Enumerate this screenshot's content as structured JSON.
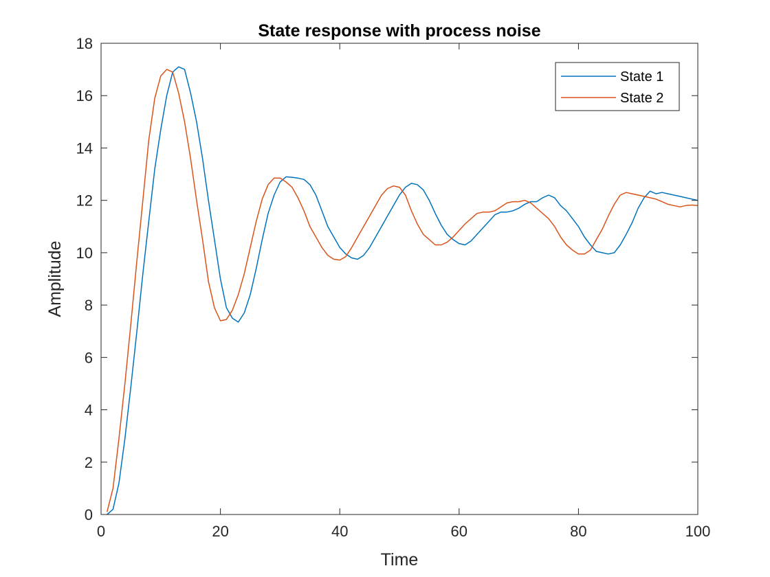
{
  "chart_data": {
    "type": "line",
    "title": "State response with process noise",
    "xlabel": "Time",
    "ylabel": "Amplitude",
    "xlim": [
      0,
      100
    ],
    "ylim": [
      0,
      18
    ],
    "xticks": [
      0,
      20,
      40,
      60,
      80,
      100
    ],
    "yticks": [
      0,
      2,
      4,
      6,
      8,
      10,
      12,
      14,
      16,
      18
    ],
    "grid": false,
    "legend_position": "top-right",
    "series": [
      {
        "name": "State 1",
        "color": "#0072BD",
        "x": [
          1,
          2,
          3,
          4,
          5,
          6,
          7,
          8,
          9,
          10,
          11,
          12,
          13,
          14,
          15,
          16,
          17,
          18,
          19,
          20,
          21,
          22,
          23,
          24,
          25,
          26,
          27,
          28,
          29,
          30,
          31,
          32,
          33,
          34,
          35,
          36,
          37,
          38,
          39,
          40,
          41,
          42,
          43,
          44,
          45,
          46,
          47,
          48,
          49,
          50,
          51,
          52,
          53,
          54,
          55,
          56,
          57,
          58,
          59,
          60,
          61,
          62,
          63,
          64,
          65,
          66,
          67,
          68,
          69,
          70,
          71,
          72,
          73,
          74,
          75,
          76,
          77,
          78,
          79,
          80,
          81,
          82,
          83,
          84,
          85,
          86,
          87,
          88,
          89,
          90,
          91,
          92,
          93,
          94,
          95,
          96,
          97,
          98,
          99,
          100
        ],
        "y": [
          0.0,
          0.2,
          1.2,
          2.9,
          4.9,
          7.0,
          9.2,
          11.2,
          13.2,
          14.7,
          16.0,
          16.9,
          17.1,
          17.0,
          16.1,
          15.0,
          13.6,
          12.0,
          10.5,
          9.0,
          7.9,
          7.5,
          7.35,
          7.7,
          8.4,
          9.4,
          10.5,
          11.5,
          12.2,
          12.7,
          12.9,
          12.88,
          12.85,
          12.8,
          12.6,
          12.2,
          11.6,
          11.0,
          10.6,
          10.2,
          9.95,
          9.8,
          9.75,
          9.9,
          10.2,
          10.6,
          11.0,
          11.4,
          11.8,
          12.2,
          12.5,
          12.65,
          12.6,
          12.4,
          12.0,
          11.5,
          11.05,
          10.7,
          10.5,
          10.35,
          10.3,
          10.45,
          10.7,
          10.95,
          11.2,
          11.45,
          11.55,
          11.55,
          11.6,
          11.7,
          11.85,
          11.95,
          11.95,
          12.1,
          12.2,
          12.1,
          11.8,
          11.6,
          11.3,
          11.0,
          10.6,
          10.3,
          10.05,
          10.0,
          9.95,
          10.0,
          10.3,
          10.7,
          11.15,
          11.7,
          12.1,
          12.35,
          12.25,
          12.3,
          12.25,
          12.2,
          12.15,
          12.1,
          12.05,
          12.0
        ]
      },
      {
        "name": "State 2",
        "color": "#D95319",
        "x": [
          1,
          2,
          3,
          4,
          5,
          6,
          7,
          8,
          9,
          10,
          11,
          12,
          13,
          14,
          15,
          16,
          17,
          18,
          19,
          20,
          21,
          22,
          23,
          24,
          25,
          26,
          27,
          28,
          29,
          30,
          31,
          32,
          33,
          34,
          35,
          36,
          37,
          38,
          39,
          40,
          41,
          42,
          43,
          44,
          45,
          46,
          47,
          48,
          49,
          50,
          51,
          52,
          53,
          54,
          55,
          56,
          57,
          58,
          59,
          60,
          61,
          62,
          63,
          64,
          65,
          66,
          67,
          68,
          69,
          70,
          71,
          72,
          73,
          74,
          75,
          76,
          77,
          78,
          79,
          80,
          81,
          82,
          83,
          84,
          85,
          86,
          87,
          88,
          89,
          90,
          91,
          92,
          93,
          94,
          95,
          96,
          97,
          98,
          99,
          100
        ],
        "y": [
          0.1,
          1.0,
          2.9,
          5.0,
          7.3,
          9.7,
          12.0,
          14.3,
          15.9,
          16.75,
          17.0,
          16.9,
          16.1,
          15.0,
          13.6,
          12.0,
          10.5,
          8.9,
          7.9,
          7.4,
          7.45,
          7.8,
          8.4,
          9.2,
          10.2,
          11.2,
          12.05,
          12.6,
          12.85,
          12.85,
          12.7,
          12.5,
          12.1,
          11.6,
          11.0,
          10.6,
          10.2,
          9.9,
          9.75,
          9.72,
          9.85,
          10.2,
          10.6,
          11.0,
          11.4,
          11.8,
          12.2,
          12.45,
          12.55,
          12.5,
          12.2,
          11.6,
          11.1,
          10.7,
          10.5,
          10.3,
          10.3,
          10.4,
          10.6,
          10.85,
          11.1,
          11.3,
          11.5,
          11.55,
          11.55,
          11.6,
          11.75,
          11.9,
          11.95,
          11.95,
          12.0,
          11.9,
          11.7,
          11.5,
          11.3,
          11.0,
          10.6,
          10.3,
          10.1,
          9.95,
          9.95,
          10.1,
          10.5,
          10.9,
          11.4,
          11.85,
          12.2,
          12.3,
          12.25,
          12.2,
          12.15,
          12.1,
          12.05,
          11.95,
          11.85,
          11.8,
          11.75,
          11.8,
          11.82,
          11.8
        ]
      }
    ]
  }
}
